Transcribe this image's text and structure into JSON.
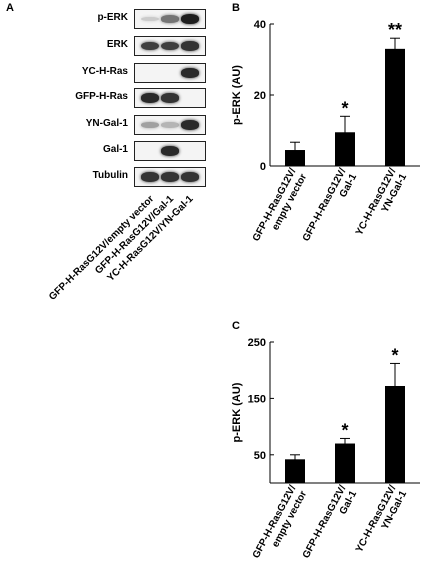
{
  "panels": {
    "a": "A",
    "b": "B",
    "c": "C"
  },
  "blot": {
    "rows": [
      {
        "label": "p-ERK",
        "intensities": [
          0.15,
          0.55,
          0.95
        ]
      },
      {
        "label": "ERK",
        "intensities": [
          0.8,
          0.8,
          0.85
        ]
      },
      {
        "label": "YC-H-Ras",
        "intensities": [
          0.0,
          0.0,
          0.9
        ]
      },
      {
        "label": "GFP-H-Ras",
        "intensities": [
          0.9,
          0.85,
          0.0
        ]
      },
      {
        "label": "YN-Gal-1",
        "intensities": [
          0.35,
          0.25,
          0.9
        ]
      },
      {
        "label": "Gal-1",
        "intensities": [
          0.0,
          0.9,
          0.0
        ]
      },
      {
        "label": "Tubulin",
        "intensities": [
          0.85,
          0.85,
          0.85
        ]
      }
    ],
    "lanes": [
      "GFP-H-RasG12V/empty vector",
      "GFP-H-RasG12V/Gal-1",
      "YC-H-RasG12V/YN-Gal-1"
    ]
  },
  "chart_data": [
    {
      "type": "bar",
      "panel": "B",
      "categories": [
        [
          "GFP-H-RasG12V/",
          "empty vector"
        ],
        [
          "GFP-H-RasG12V/",
          "Gal-1"
        ],
        [
          "YC-H-RasG12V/",
          "YN-Gal-1"
        ]
      ],
      "values": [
        4.5,
        9.5,
        33
      ],
      "errors": [
        2.2,
        4.5,
        3
      ],
      "annotations": [
        "",
        "*",
        "**"
      ],
      "ylabel": "p-ERK (AU)",
      "ylim": [
        0,
        40
      ],
      "yticks": [
        0,
        20,
        40
      ],
      "bar_color": "#000000"
    },
    {
      "type": "bar",
      "panel": "C",
      "categories": [
        [
          "GFP-H-RasG12V/",
          "empty vector"
        ],
        [
          "GFP-H-RasG12V/",
          "Gal-1"
        ],
        [
          "YC-H-RasG12V/",
          "YN-Gal-1"
        ]
      ],
      "values": [
        42,
        70,
        172
      ],
      "errors": [
        8,
        9,
        40
      ],
      "annotations": [
        "",
        "*",
        "*"
      ],
      "ylabel": "p-ERK (AU)",
      "ylim": [
        0,
        250
      ],
      "yticks": [
        50,
        150,
        250
      ],
      "bar_color": "#000000"
    }
  ]
}
